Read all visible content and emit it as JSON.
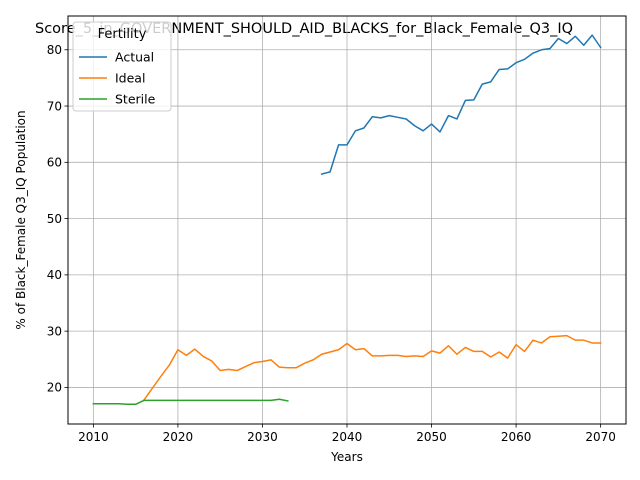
{
  "chart_data": {
    "type": "line",
    "title": "Score_5_in_GOVERNMENT_SHOULD_AID_BLACKS_for_Black_Female_Q3_IQ",
    "xlabel": "Years",
    "ylabel": "% of Black_Female Q3_IQ Population",
    "xlim": [
      2007,
      2073
    ],
    "ylim": [
      13.5,
      86
    ],
    "xticks": [
      2010,
      2020,
      2030,
      2040,
      2050,
      2060,
      2070
    ],
    "yticks": [
      20,
      30,
      40,
      50,
      60,
      70,
      80
    ],
    "grid": true,
    "legend": {
      "title": "Fertility",
      "placement": "upper-left"
    },
    "series": [
      {
        "name": "Actual",
        "color": "#1f77b4",
        "x": [
          2037,
          2038,
          2039,
          2040,
          2041,
          2042,
          2043,
          2044,
          2045,
          2046,
          2047,
          2048,
          2049,
          2050,
          2051,
          2052,
          2053,
          2054,
          2055,
          2056,
          2057,
          2058,
          2059,
          2060,
          2061,
          2062,
          2063,
          2064,
          2065,
          2066,
          2067,
          2068,
          2069,
          2070
        ],
        "y": [
          57.9,
          58.3,
          63.1,
          63.1,
          65.6,
          66.1,
          68.1,
          67.9,
          68.3,
          68.0,
          67.7,
          66.5,
          65.6,
          66.8,
          65.4,
          68.3,
          67.7,
          71.0,
          71.1,
          73.9,
          74.3,
          76.5,
          76.6,
          77.7,
          78.3,
          79.4,
          80.0,
          80.2,
          82.0,
          81.1,
          82.4,
          80.8,
          82.6,
          80.4
        ]
      },
      {
        "name": "Ideal",
        "color": "#ff7f0e",
        "x": [
          2016,
          2017,
          2018,
          2019,
          2020,
          2021,
          2022,
          2023,
          2024,
          2025,
          2026,
          2027,
          2028,
          2029,
          2030,
          2031,
          2032,
          2033,
          2034,
          2035,
          2036,
          2037,
          2038,
          2039,
          2040,
          2041,
          2042,
          2043,
          2044,
          2045,
          2046,
          2047,
          2048,
          2049,
          2050,
          2051,
          2052,
          2053,
          2054,
          2055,
          2056,
          2057,
          2058,
          2059,
          2060,
          2061,
          2062,
          2063,
          2064,
          2065,
          2066,
          2067,
          2068,
          2069,
          2070
        ],
        "y": [
          17.8,
          19.9,
          22.0,
          24.0,
          26.7,
          25.7,
          26.8,
          25.5,
          24.7,
          23.0,
          23.2,
          23.0,
          23.7,
          24.4,
          24.6,
          24.9,
          23.6,
          23.5,
          23.5,
          24.3,
          24.9,
          25.9,
          26.3,
          26.7,
          27.8,
          26.7,
          26.9,
          25.6,
          25.6,
          25.7,
          25.7,
          25.5,
          25.6,
          25.5,
          26.5,
          26.1,
          27.4,
          25.9,
          27.1,
          26.4,
          26.4,
          25.4,
          26.3,
          25.2,
          27.6,
          26.4,
          28.4,
          27.9,
          29.0,
          29.1,
          29.2,
          28.4,
          28.4,
          27.9,
          27.9
        ]
      },
      {
        "name": "Sterile",
        "color": "#2ca02c",
        "x": [
          2010,
          2011,
          2012,
          2013,
          2014,
          2015,
          2016,
          2017,
          2018,
          2019,
          2020,
          2021,
          2022,
          2023,
          2024,
          2025,
          2026,
          2027,
          2028,
          2029,
          2030,
          2031,
          2032,
          2033
        ],
        "y": [
          17.1,
          17.1,
          17.1,
          17.1,
          17.0,
          17.0,
          17.7,
          17.7,
          17.7,
          17.7,
          17.7,
          17.7,
          17.7,
          17.7,
          17.7,
          17.7,
          17.7,
          17.7,
          17.7,
          17.7,
          17.7,
          17.7,
          17.9,
          17.6
        ]
      }
    ]
  }
}
